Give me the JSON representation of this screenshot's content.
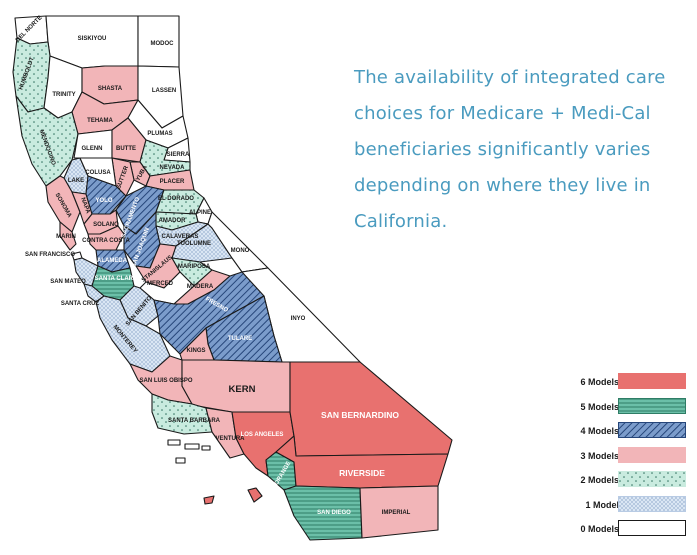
{
  "caption": "The availability of integrated care choices for Medicare + Medi-Cal beneficiaries significantly varies depending on where they live in California.",
  "legend": [
    {
      "label": "6 Models",
      "fill": "#e8716f",
      "pattern": "solid"
    },
    {
      "label": "5 Models",
      "fill": "#6bbfa8",
      "pattern": "h-stripes"
    },
    {
      "label": "4 Models",
      "fill": "#7b9ccb",
      "pattern": "diag-stripes"
    },
    {
      "label": "3 Models",
      "fill": "#f2b5b8",
      "pattern": "solid"
    },
    {
      "label": "2 Models",
      "fill": "#c9ebdf",
      "pattern": "dots"
    },
    {
      "label": "1 Model",
      "fill": "#dfeaf6",
      "pattern": "crosshatch"
    },
    {
      "label": "0 Models",
      "fill": "#ffffff",
      "pattern": "solid"
    }
  ],
  "counties": {
    "del_norte": "DEL NORTE",
    "siskiyou": "SISKIYOU",
    "modoc": "MODOC",
    "humboldt": "HUMBOLDT",
    "trinity": "TRINITY",
    "shasta": "SHASTA",
    "lassen": "LASSEN",
    "tehama": "TEHAMA",
    "plumas": "PLUMAS",
    "mendocino": "MENDOCINO",
    "glenn": "GLENN",
    "butte": "BUTTE",
    "sierra": "SIERRA",
    "nevada": "NEVADA",
    "lake": "LAKE",
    "colusa": "COLUSA",
    "sutter": "SUTTER",
    "yuba": "YUBA",
    "placer": "PLACER",
    "sonoma": "SONOMA",
    "napa": "NAPA",
    "yolo": "YOLO",
    "sacramento": "SACRAMENTO",
    "el_dorado": "EL DORADO",
    "alpine": "ALPINE",
    "marin": "MARIN",
    "solano": "SOLANO",
    "amador": "AMADOR",
    "calaveras": "CALAVERAS",
    "contra_costa": "CONTRA COSTA",
    "san_joaquin": "SAN JOAQUIN",
    "tuolumne": "TUOLUMNE",
    "mono": "MONO",
    "san_francisco": "SAN FRANCISCO",
    "alameda": "ALAMEDA",
    "stanislaus": "STANISLAUS",
    "mariposa": "MARIPOSA",
    "san_mateo": "SAN MATEO",
    "santa_clara": "SANTA CLARA",
    "merced": "MERCED",
    "madera": "MADERA",
    "santa_cruz": "SANTA CRUZ",
    "san_benito": "SAN BENITO",
    "fresno": "FRESNO",
    "inyo": "INYO",
    "monterey": "MONTEREY",
    "tulare": "TULARE",
    "kings": "KINGS",
    "san_luis_obispo": "SAN LUIS OBISPO",
    "kern": "KERN",
    "santa_barbara": "SANTA BARBARA",
    "ventura": "VENTURA",
    "los_angeles": "LOS ANGELES",
    "san_bernardino": "SAN BERNARDINO",
    "riverside": "RIVERSIDE",
    "orange": "ORANGE",
    "san_diego": "SAN DIEGO",
    "imperial": "IMPERIAL"
  },
  "colors": {
    "outline": "#1a1a1a",
    "caption": "#4a9bbf"
  }
}
